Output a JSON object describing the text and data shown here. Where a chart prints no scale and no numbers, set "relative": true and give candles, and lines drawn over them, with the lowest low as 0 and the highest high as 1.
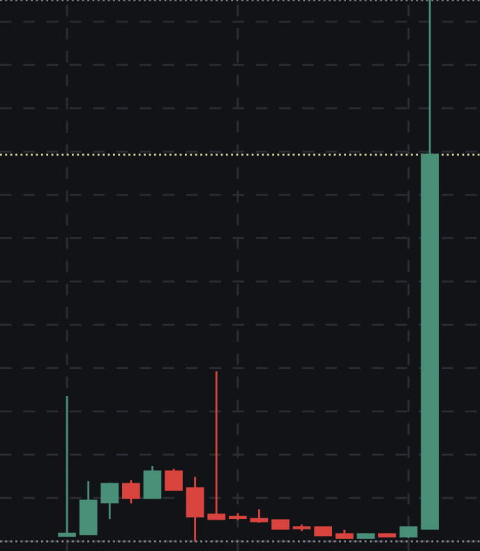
{
  "chart_data": {
    "type": "candlestick",
    "relative": true,
    "categories": [
      null,
      null,
      null,
      null,
      null,
      null,
      null,
      null,
      null,
      null,
      null,
      null,
      null,
      null,
      null,
      null,
      null,
      null
    ],
    "ohlc": [
      [
        0.01,
        0.268,
        0.01,
        0.014
      ],
      [
        0.013,
        0.111,
        0.013,
        0.075
      ],
      [
        0.072,
        0.108,
        0.041,
        0.106
      ],
      [
        0.106,
        0.113,
        0.07,
        0.08
      ],
      [
        0.08,
        0.139,
        0.08,
        0.129
      ],
      [
        0.129,
        0.134,
        0.095,
        0.095
      ],
      [
        0.098,
        0.119,
        0.0,
        0.046
      ],
      [
        0.049,
        0.314,
        0.041,
        0.041
      ],
      [
        0.045,
        0.052,
        0.039,
        0.043
      ],
      [
        0.041,
        0.059,
        0.034,
        0.037
      ],
      [
        0.039,
        0.039,
        0.023,
        0.023
      ],
      [
        0.026,
        0.031,
        0.019,
        0.024
      ],
      [
        0.026,
        0.026,
        0.011,
        0.011
      ],
      [
        0.013,
        0.021,
        0.006,
        0.006
      ],
      [
        0.006,
        0.015,
        0.006,
        0.013
      ],
      [
        0.013,
        0.015,
        0.009,
        0.009
      ],
      [
        0.009,
        0.026,
        0.006,
        0.026
      ],
      [
        0.023,
        1.0,
        0.023,
        0.714
      ]
    ],
    "colors": [
      "#4a8f78",
      "#4a8f78",
      "#4a8f78",
      "#d9443f",
      "#4a8f78",
      "#d9443f",
      "#d9443f",
      "#d9443f",
      "#d9443f",
      "#d9443f",
      "#d9443f",
      "#d9443f",
      "#d9443f",
      "#d9443f",
      "#4a8f78",
      "#d9443f",
      "#4a8f78",
      "#4a8f78"
    ],
    "ref_lines": [
      {
        "axis": "y",
        "value": 0.714,
        "color": "#d8d49a",
        "line_style": "dotted"
      },
      {
        "axis": "y",
        "value": 0,
        "color": "#8a8c92",
        "line_style": "dotted"
      },
      {
        "axis": "y",
        "value": 1.0,
        "color": "#8a8c92",
        "line_style": "dotted"
      }
    ],
    "grid": true
  }
}
